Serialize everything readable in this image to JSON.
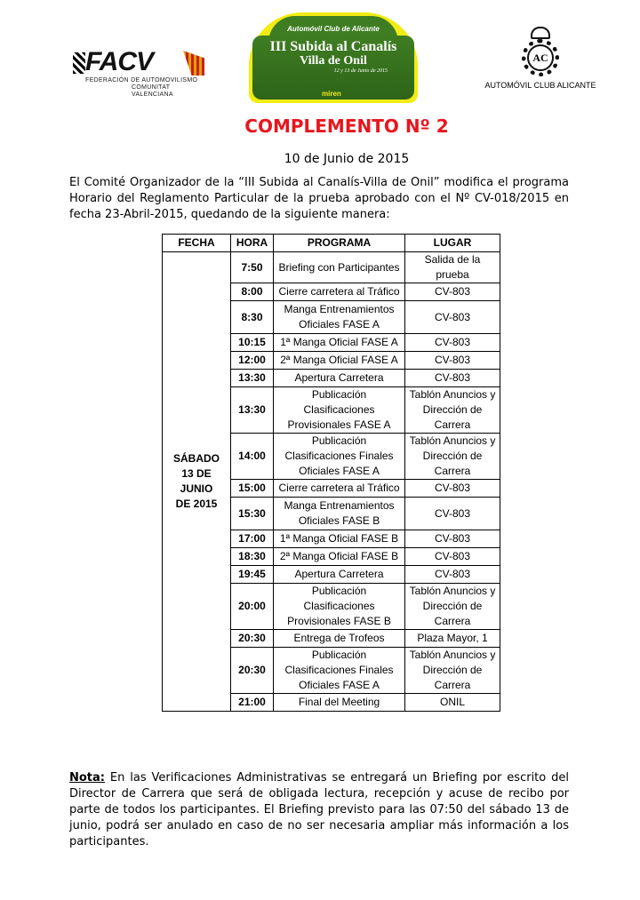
{
  "header": {
    "facv_logo": {
      "name": "FACV",
      "subtitle_1": "FEDERACIÓN DE AUTOMOVILISMO",
      "subtitle_2": "COMUNITAT VALENCIANA"
    },
    "event_plate": {
      "top": "Automóvil Club de Alicante",
      "title_1": "III Subida al Canalís",
      "title_2": "Villa de Onil",
      "dates": "12 y 13 de Junio de 2015",
      "sponsor": "miren"
    },
    "club_caption": "AUTOMÓVIL CLUB ALICANTE"
  },
  "title": "COMPLEMENTO Nº 2",
  "title_color": "#e8161d",
  "date": "10 de Junio de 2015",
  "intro": "El Comité Organizador de la “III Subida al Canalís-Villa de Onil” modifica el programa Horario del Reglamento Particular de la prueba aprobado con el Nº CV-018/2015 en fecha 23-Abril-2015, quedando de la siguiente manera:",
  "table": {
    "headers": [
      "FECHA",
      "HORA",
      "PROGRAMA",
      "LUGAR"
    ],
    "fecha": "SÁBADO 13 DE JUNIO DE 2015",
    "rows": [
      {
        "hora": "7:50",
        "programa": "Briefing con Participantes",
        "lugar": "Salida de la prueba"
      },
      {
        "hora": "8:00",
        "programa": "Cierre carretera al Tráfico",
        "lugar": "CV-803"
      },
      {
        "hora": "8:30",
        "programa": "Manga Entrenamientos Oficiales FASE A",
        "lugar": "CV-803"
      },
      {
        "hora": "10:15",
        "programa": "1ª Manga Oficial FASE A",
        "lugar": "CV-803"
      },
      {
        "hora": "12:00",
        "programa": "2ª Manga Oficial FASE A",
        "lugar": "CV-803"
      },
      {
        "hora": "13:30",
        "programa": "Apertura Carretera",
        "lugar": "CV-803"
      },
      {
        "hora": "13:30",
        "programa": "Publicación Clasificaciones Provisionales FASE A",
        "lugar": "Tablón Anuncios y Dirección de Carrera"
      },
      {
        "hora": "14:00",
        "programa": "Publicación Clasificaciones Finales Oficiales FASE A",
        "lugar": "Tablón Anuncios y Dirección de Carrera"
      },
      {
        "hora": "15:00",
        "programa": "Cierre carretera al Tráfico",
        "lugar": "CV-803"
      },
      {
        "hora": "15:30",
        "programa": "Manga Entrenamientos Oficiales FASE B",
        "lugar": "CV-803"
      },
      {
        "hora": "17:00",
        "programa": "1ª Manga Oficial FASE B",
        "lugar": "CV-803"
      },
      {
        "hora": "18:30",
        "programa": "2ª Manga Oficial FASE B",
        "lugar": "CV-803"
      },
      {
        "hora": "19:45",
        "programa": "Apertura Carretera",
        "lugar": "CV-803"
      },
      {
        "hora": "20:00",
        "programa": "Publicación Clasificaciones Provisionales FASE B",
        "lugar": "Tablón Anuncios y Dirección de Carrera"
      },
      {
        "hora": "20:30",
        "programa": "Entrega de Trofeos",
        "lugar": "Plaza Mayor, 1"
      },
      {
        "hora": "20:30",
        "programa": "Publicación Clasificaciones Finales Oficiales FASE A",
        "lugar": "Tablón Anuncios y Dirección de Carrera"
      },
      {
        "hora": "21:00",
        "programa": "Final del Meeting",
        "lugar": "ONIL"
      }
    ]
  },
  "note": {
    "label": "Nota:",
    "text": " En las Verificaciones Administrativas se entregará un Briefing por escrito del Director de Carrera que será de obligada lectura, recepción y acuse de recibo por parte de todos los participantes. El Briefing previsto para las 07:50 del sábado 13 de junio, podrá ser anulado en caso de no ser necesaria ampliar más información a los participantes."
  }
}
